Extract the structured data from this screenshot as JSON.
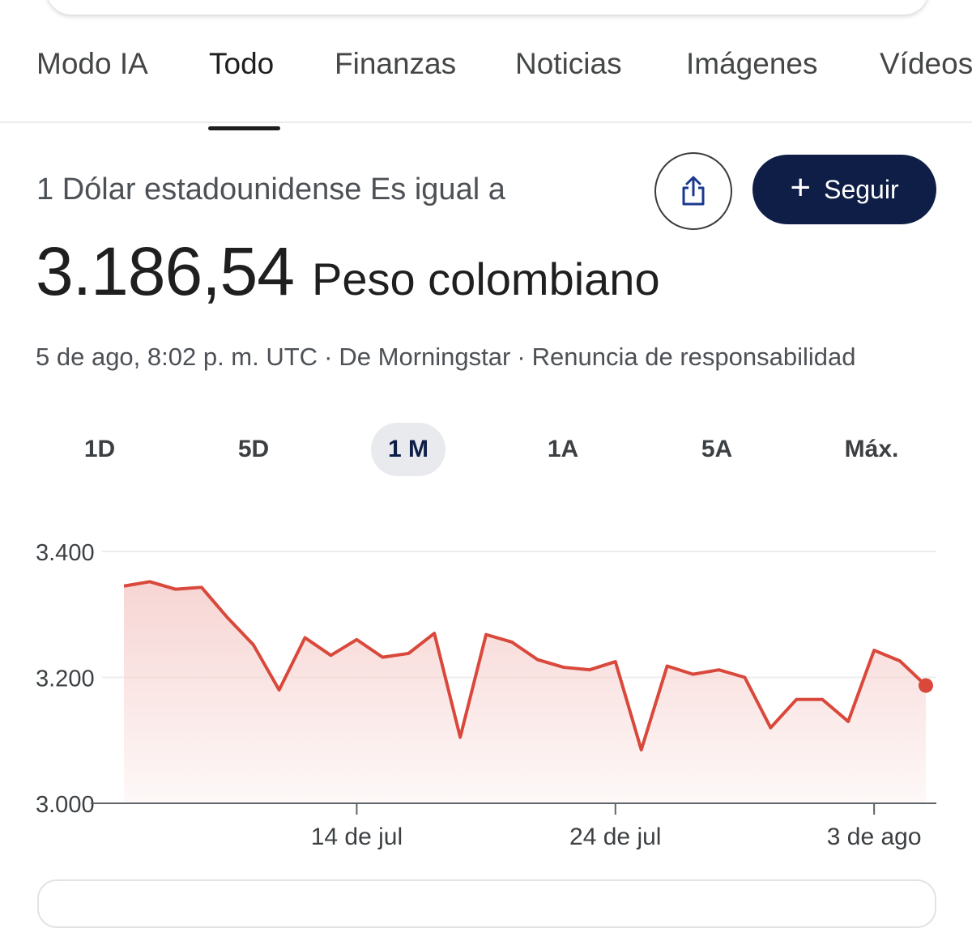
{
  "tabs": [
    {
      "label": "Modo IA"
    },
    {
      "label": "Todo"
    },
    {
      "label": "Finanzas"
    },
    {
      "label": "Noticias"
    },
    {
      "label": "Imágenes"
    },
    {
      "label": "Vídeos"
    }
  ],
  "active_tab": "Todo",
  "converter": {
    "equals_label": "1 Dólar estadounidense Es igual a",
    "value": "3.186,54",
    "currency": "Peso colombiano",
    "timestamp": "5 de ago, 8:02 p. m. UTC",
    "separator": "·",
    "source": "De Morningstar",
    "disclaimer": "Renuncia de responsabilidad",
    "follow_label": "Seguir",
    "follow_icon": "plus-icon",
    "share_icon": "share-icon"
  },
  "ranges": [
    {
      "label": "1D"
    },
    {
      "label": "5D"
    },
    {
      "label": "1 M"
    },
    {
      "label": "1A"
    },
    {
      "label": "5A"
    },
    {
      "label": "Máx."
    }
  ],
  "active_range": "1 M",
  "colors": {
    "line": "#d9483b",
    "fill_top": "#f6d3d1",
    "follow_bg": "#0e1e46",
    "active_range_bg": "#e8eaee"
  },
  "chart_data": {
    "type": "area",
    "y_ticks": [
      "3.400",
      "3.200",
      "3.000"
    ],
    "y_tick_values": [
      3400,
      3200,
      3000
    ],
    "ylim": [
      3000,
      3400
    ],
    "x_ticks": [
      "14 de jul",
      "24 de jul",
      "3 de ago"
    ],
    "x_tick_index": [
      9,
      19,
      29
    ],
    "grid": true,
    "series": [
      {
        "values": [
          3345,
          3352,
          3340,
          3343,
          3295,
          3252,
          3180,
          3263,
          3235,
          3260,
          3232,
          3238,
          3270,
          3105,
          3268,
          3256,
          3228,
          3216,
          3212,
          3225,
          3085,
          3218,
          3205,
          3212,
          3200,
          3120,
          3165,
          3165,
          3130,
          3243,
          3226,
          3187
        ]
      }
    ]
  }
}
